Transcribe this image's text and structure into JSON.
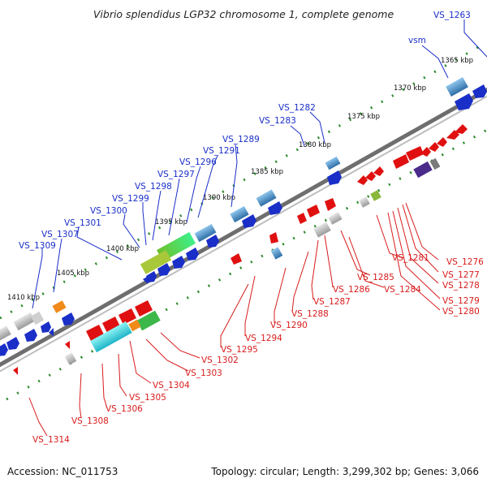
{
  "title": "Vibrio splendidus LGP32 chromosome 1, complete genome",
  "footer": {
    "accession": "Accession: NC_011753",
    "topology": "Topology: circular; Length: 3,299,302 bp; Genes: 3,066"
  },
  "scale_labels": [
    "1365 kbp",
    "1370 kbp",
    "1375 kbp",
    "1380 kbp",
    "1385 kbp",
    "1390 kbp",
    "1395 kbp",
    "1400 kbp",
    "1405 kbp",
    "1410 kbp"
  ],
  "forward_labels": [
    "VS_1263",
    "vsm",
    "VS_1282",
    "VS_1283",
    "VS_1289",
    "VS_1291",
    "VS_1296",
    "VS_1297",
    "VS_1298",
    "VS_1299",
    "VS_1300",
    "VS_1301",
    "VS_1307",
    "VS_1309"
  ],
  "reverse_labels": [
    "VS_1276",
    "VS_1277",
    "VS_1278",
    "VS_1279",
    "VS_1280",
    "VS_1281",
    "VS_1284",
    "VS_1285",
    "VS_1286",
    "VS_1287",
    "VS_1288",
    "VS_1290",
    "VS_1294",
    "VS_1295",
    "VS_1302",
    "VS_1303",
    "VS_1304",
    "VS_1305",
    "VS_1306",
    "VS_1308",
    "VS_1314"
  ],
  "colors": {
    "forward_strand": "#1a2ec8",
    "reverse_strand": "#d81c1c",
    "backbone": "#8a8a8a",
    "scale_dots": "#2a8a2a"
  }
}
